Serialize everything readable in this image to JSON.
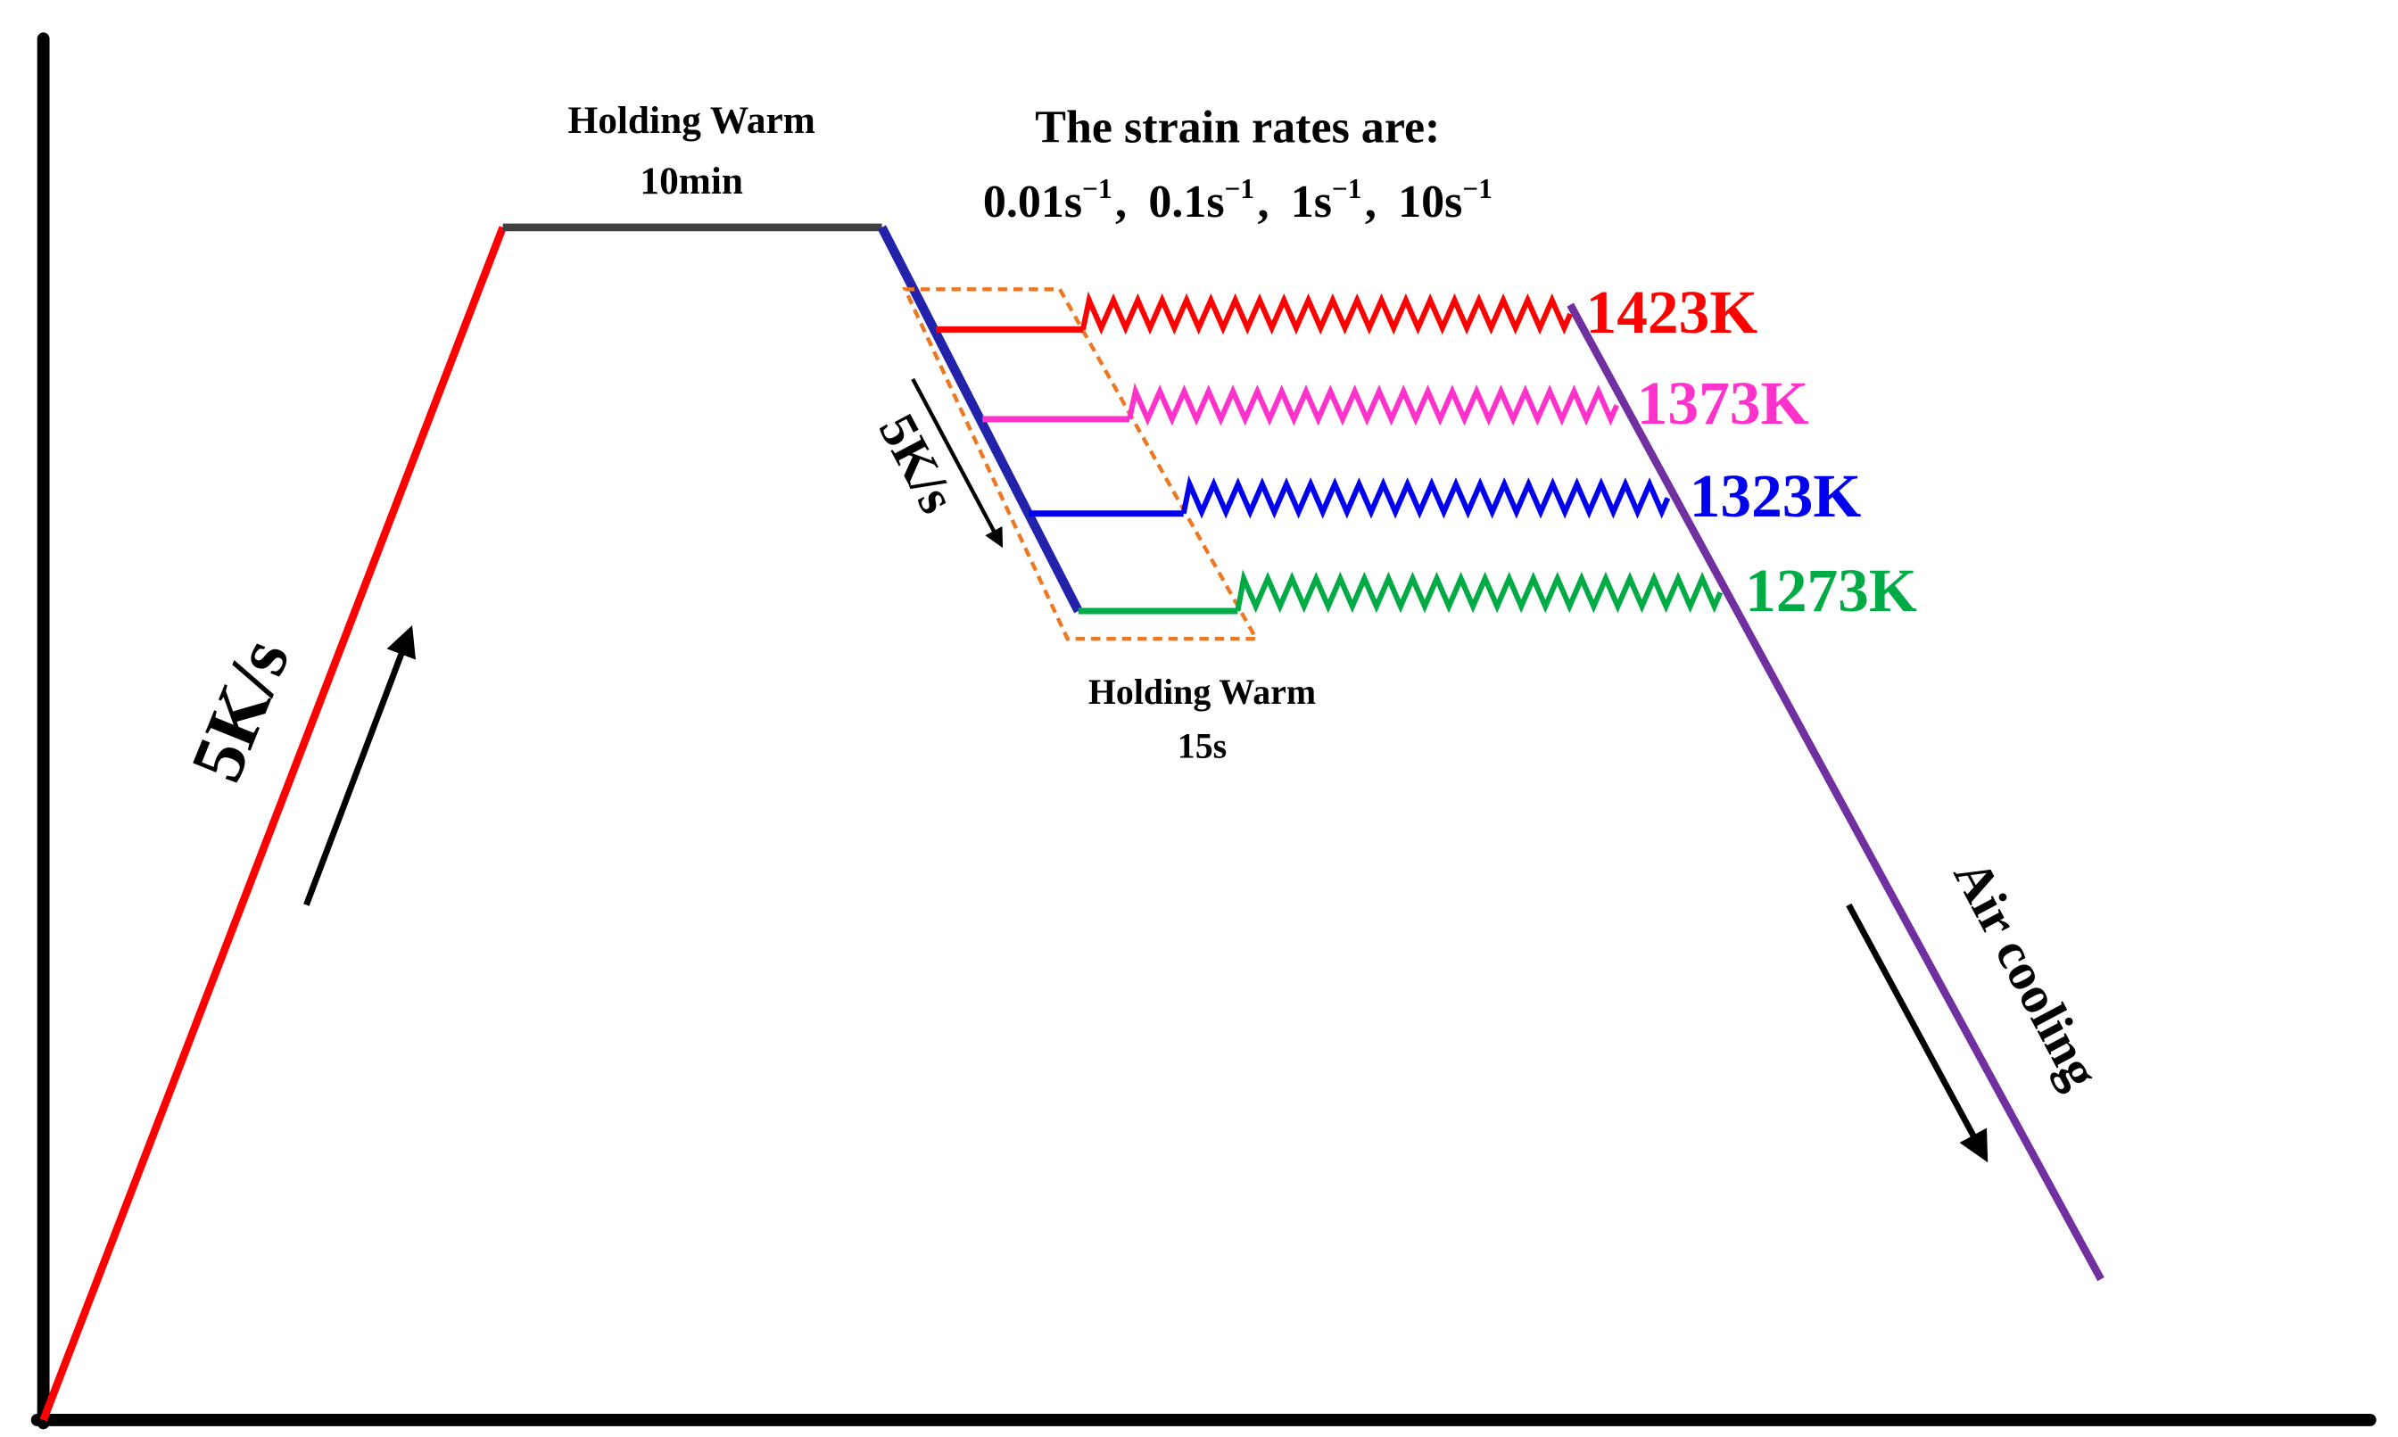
{
  "holding_top": {
    "line1": "Holding Warm",
    "line2": "10min"
  },
  "strain_title": "The strain rates are:",
  "strain_rates": [
    {
      "text": "0.01s",
      "sup": "−1",
      "sep": ","
    },
    {
      "text": "0.1s",
      "sup": "−1",
      "sep": ","
    },
    {
      "text": "1s",
      "sup": "−1",
      "sep": ","
    },
    {
      "text": "10s",
      "sup": "−1"
    }
  ],
  "temperatures": [
    {
      "label": "1423K",
      "color": "#ff0000"
    },
    {
      "label": "1373K",
      "color": "#ff33cc"
    },
    {
      "label": "1323K",
      "color": "#0000ee"
    },
    {
      "label": "1273K",
      "color": "#00aa44"
    }
  ],
  "holding_bottom": {
    "line1": "Holding Warm",
    "line2": "15s"
  },
  "heating_rate": "5K/s",
  "cooling_rate": "5K/s",
  "air_cooling": "Air cooling"
}
